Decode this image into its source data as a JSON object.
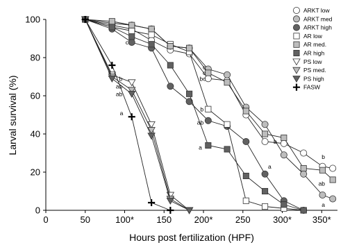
{
  "chart_data": {
    "type": "line",
    "xlabel": "Hours post fertilization (HPF)",
    "ylabel": "Larval survival (%)",
    "xlim": [
      0,
      370
    ],
    "ylim": [
      0,
      100
    ],
    "x_ticks": [
      {
        "value": 0,
        "label": "0"
      },
      {
        "value": 50,
        "label": "50"
      },
      {
        "value": 100,
        "label": "100*"
      },
      {
        "value": 150,
        "label": "150"
      },
      {
        "value": 200,
        "label": "200*"
      },
      {
        "value": 250,
        "label": "250"
      },
      {
        "value": 300,
        "label": "300*"
      },
      {
        "value": 350,
        "label": "350*"
      }
    ],
    "y_ticks": [
      0,
      20,
      40,
      60,
      80,
      100
    ],
    "legend_position": "top-right",
    "series": [
      {
        "name": "ARKT low",
        "marker": "circle",
        "fill": "#ffffff",
        "x": [
          50,
          84,
          109,
          134,
          158,
          182,
          206,
          230,
          254,
          278,
          302,
          327,
          351,
          364
        ],
        "y": [
          100,
          97,
          95,
          89,
          84,
          82,
          69,
          68,
          50,
          36,
          35,
          30,
          23,
          22
        ]
      },
      {
        "name": "ARKT med",
        "marker": "circle",
        "fill": "#bdbdbd",
        "x": [
          50,
          84,
          109,
          134,
          158,
          182,
          206,
          230,
          254,
          278,
          302,
          327,
          351,
          364
        ],
        "y": [
          100,
          98,
          97,
          95,
          86,
          85,
          74,
          71,
          54,
          45,
          29,
          19,
          8,
          6
        ]
      },
      {
        "name": "ARKT high",
        "marker": "circle",
        "fill": "#616161",
        "x": [
          50,
          84,
          109,
          134,
          158,
          182,
          206,
          230,
          254,
          278,
          302,
          327
        ],
        "y": [
          100,
          95,
          88,
          85,
          65,
          57,
          47,
          44,
          36,
          19,
          5,
          0
        ]
      },
      {
        "name": "AR low",
        "marker": "square",
        "fill": "#ffffff",
        "x": [
          50,
          84,
          109,
          134,
          158,
          182,
          206,
          230,
          254,
          278,
          302,
          327
        ],
        "y": [
          100,
          96,
          94,
          92,
          87,
          83,
          53,
          45,
          5,
          2,
          1,
          0
        ]
      },
      {
        "name": "AR med.",
        "marker": "square",
        "fill": "#bdbdbd",
        "x": [
          50,
          84,
          109,
          134,
          158,
          182,
          206,
          230,
          254,
          278,
          302,
          327,
          351,
          364
        ],
        "y": [
          100,
          99,
          97,
          95,
          86,
          85,
          72,
          67,
          52,
          40,
          38,
          22,
          21,
          16
        ]
      },
      {
        "name": "AR high",
        "marker": "square",
        "fill": "#616161",
        "x": [
          50,
          84,
          109,
          134,
          158,
          182,
          206,
          230,
          254,
          278,
          302,
          327
        ],
        "y": [
          100,
          96,
          91,
          87,
          76,
          61,
          34,
          32,
          18,
          10,
          3,
          0
        ]
      },
      {
        "name": "PS low",
        "marker": "triangle-down",
        "fill": "#ffffff",
        "x": [
          50,
          84,
          109,
          134,
          158,
          182
        ],
        "y": [
          100,
          71,
          67,
          45,
          8,
          0
        ]
      },
      {
        "name": "PS med.",
        "marker": "triangle-down",
        "fill": "#bdbdbd",
        "x": [
          50,
          84,
          109,
          134,
          158,
          182
        ],
        "y": [
          100,
          70,
          63,
          42,
          6,
          0
        ]
      },
      {
        "name": "PS high",
        "marker": "triangle-down",
        "fill": "#616161",
        "x": [
          50,
          84,
          109,
          134,
          158,
          182
        ],
        "y": [
          100,
          69,
          61,
          39,
          5,
          0
        ]
      },
      {
        "name": "FASW",
        "marker": "plus",
        "fill": "#000000",
        "x": [
          50,
          84,
          109,
          134,
          158
        ],
        "y": [
          100,
          76,
          49,
          4,
          0
        ]
      }
    ],
    "annotations": [
      {
        "text": "c",
        "x": 103,
        "y": 88
      },
      {
        "text": "b",
        "x": 95,
        "y": 69
      },
      {
        "text": "ab",
        "x": 93,
        "y": 65
      },
      {
        "text": "ab",
        "x": 93,
        "y": 61
      },
      {
        "text": "a",
        "x": 96,
        "y": 51
      },
      {
        "text": "c",
        "x": 201,
        "y": 75
      },
      {
        "text": "c",
        "x": 201,
        "y": 72
      },
      {
        "text": "bc",
        "x": 199,
        "y": 69
      },
      {
        "text": "b",
        "x": 198,
        "y": 53
      },
      {
        "text": "ab",
        "x": 196,
        "y": 46
      },
      {
        "text": "a",
        "x": 196,
        "y": 33
      },
      {
        "text": "b",
        "x": 291,
        "y": 36
      },
      {
        "text": "a",
        "x": 284,
        "y": 23
      },
      {
        "text": "b",
        "x": 352,
        "y": 28
      },
      {
        "text": "ab",
        "x": 350,
        "y": 14
      },
      {
        "text": "a",
        "x": 352,
        "y": 3
      }
    ]
  }
}
